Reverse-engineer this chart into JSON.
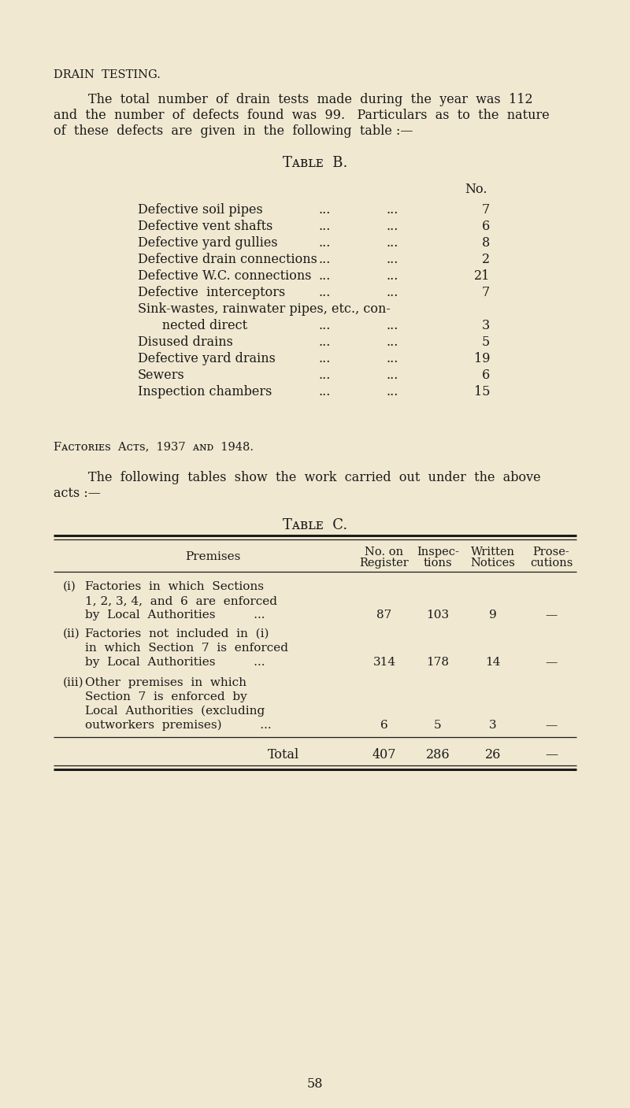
{
  "bg_color": "#f0e8d0",
  "text_color": "#1a1a1a",
  "page_number": "58",
  "section_heading": "DRAIN  TESTING.",
  "table_b_title": "Tᴀʙʟᴇ  B.",
  "table_b_col_header": "No.",
  "table_b_rows": [
    [
      "Defective soil pipes",
      "...",
      "...",
      "7"
    ],
    [
      "Defective vent shafts",
      "...",
      "...",
      "6"
    ],
    [
      "Defective yard gullies",
      "...",
      "...",
      "8"
    ],
    [
      "Defective drain connections",
      "...",
      "...",
      "2"
    ],
    [
      "Defective W.C. connections",
      "...",
      "...",
      "21"
    ],
    [
      "Defective  interceptors",
      "...",
      "...",
      "7"
    ],
    [
      "Sink-wastes, rainwater pipes, etc., con-",
      "",
      "",
      ""
    ],
    [
      "      nected direct",
      "...",
      "...",
      "3"
    ],
    [
      "Disused drains",
      "...",
      "...",
      "5"
    ],
    [
      "Defective yard drains",
      "...",
      "...",
      "19"
    ],
    [
      "Sewers",
      "...",
      "...",
      "6"
    ],
    [
      "Inspection chambers",
      "...",
      "...",
      "15"
    ]
  ],
  "factories_heading": "Fᴀᴄᴛᴏʀɪᴇs  Aᴄᴛs,  1937  ᴀɴᴅ  1948.",
  "table_c_title": "Tᴀʙʟᴇ  C.",
  "table_c_col_headers_line1": [
    "No. on",
    "Inspec-",
    "Written",
    "Prose-"
  ],
  "table_c_col_headers_line2": [
    "Register",
    "tions",
    "Notices",
    "cutions"
  ],
  "table_c_rows": [
    {
      "prefix": "(i)",
      "lines": [
        "Factories in which Sections",
        "1, 2, 3, 4, and 6 are enforced",
        "by Local Authorities          ..."
      ],
      "values": [
        "87",
        "103",
        "9",
        "—"
      ]
    },
    {
      "prefix": "(ii)",
      "lines": [
        "Factories not included in (i)",
        "in which Section 7 is enforced",
        "by Local Authorities          ..."
      ],
      "values": [
        "314",
        "178",
        "14",
        "—"
      ]
    },
    {
      "prefix": "(iii)",
      "lines": [
        "Other premises in which",
        "Section 7 is enforced by",
        "Local Authorities (excluding",
        "outworkers premises)          ..."
      ],
      "values": [
        "6",
        "5",
        "3",
        "—"
      ]
    }
  ],
  "table_c_total": [
    "407",
    "286",
    "26",
    "—"
  ]
}
